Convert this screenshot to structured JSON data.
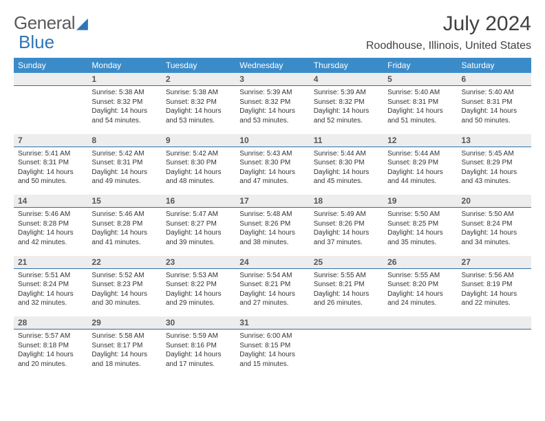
{
  "logo": {
    "part1": "General",
    "part2": "Blue"
  },
  "title": "July 2024",
  "location": "Roodhouse, Illinois, United States",
  "header_bg": "#3b8bc9",
  "daynum_bg": "#ededed",
  "daynum_border": "#2e6ca4",
  "weekdays": [
    "Sunday",
    "Monday",
    "Tuesday",
    "Wednesday",
    "Thursday",
    "Friday",
    "Saturday"
  ],
  "weeks": [
    {
      "nums": [
        "",
        "1",
        "2",
        "3",
        "4",
        "5",
        "6"
      ],
      "cells": [
        {
          "sr": "",
          "ss": "",
          "dl1": "",
          "dl2": ""
        },
        {
          "sr": "Sunrise: 5:38 AM",
          "ss": "Sunset: 8:32 PM",
          "dl1": "Daylight: 14 hours",
          "dl2": "and 54 minutes."
        },
        {
          "sr": "Sunrise: 5:38 AM",
          "ss": "Sunset: 8:32 PM",
          "dl1": "Daylight: 14 hours",
          "dl2": "and 53 minutes."
        },
        {
          "sr": "Sunrise: 5:39 AM",
          "ss": "Sunset: 8:32 PM",
          "dl1": "Daylight: 14 hours",
          "dl2": "and 53 minutes."
        },
        {
          "sr": "Sunrise: 5:39 AM",
          "ss": "Sunset: 8:32 PM",
          "dl1": "Daylight: 14 hours",
          "dl2": "and 52 minutes."
        },
        {
          "sr": "Sunrise: 5:40 AM",
          "ss": "Sunset: 8:31 PM",
          "dl1": "Daylight: 14 hours",
          "dl2": "and 51 minutes."
        },
        {
          "sr": "Sunrise: 5:40 AM",
          "ss": "Sunset: 8:31 PM",
          "dl1": "Daylight: 14 hours",
          "dl2": "and 50 minutes."
        }
      ]
    },
    {
      "nums": [
        "7",
        "8",
        "9",
        "10",
        "11",
        "12",
        "13"
      ],
      "cells": [
        {
          "sr": "Sunrise: 5:41 AM",
          "ss": "Sunset: 8:31 PM",
          "dl1": "Daylight: 14 hours",
          "dl2": "and 50 minutes."
        },
        {
          "sr": "Sunrise: 5:42 AM",
          "ss": "Sunset: 8:31 PM",
          "dl1": "Daylight: 14 hours",
          "dl2": "and 49 minutes."
        },
        {
          "sr": "Sunrise: 5:42 AM",
          "ss": "Sunset: 8:30 PM",
          "dl1": "Daylight: 14 hours",
          "dl2": "and 48 minutes."
        },
        {
          "sr": "Sunrise: 5:43 AM",
          "ss": "Sunset: 8:30 PM",
          "dl1": "Daylight: 14 hours",
          "dl2": "and 47 minutes."
        },
        {
          "sr": "Sunrise: 5:44 AM",
          "ss": "Sunset: 8:30 PM",
          "dl1": "Daylight: 14 hours",
          "dl2": "and 45 minutes."
        },
        {
          "sr": "Sunrise: 5:44 AM",
          "ss": "Sunset: 8:29 PM",
          "dl1": "Daylight: 14 hours",
          "dl2": "and 44 minutes."
        },
        {
          "sr": "Sunrise: 5:45 AM",
          "ss": "Sunset: 8:29 PM",
          "dl1": "Daylight: 14 hours",
          "dl2": "and 43 minutes."
        }
      ]
    },
    {
      "nums": [
        "14",
        "15",
        "16",
        "17",
        "18",
        "19",
        "20"
      ],
      "cells": [
        {
          "sr": "Sunrise: 5:46 AM",
          "ss": "Sunset: 8:28 PM",
          "dl1": "Daylight: 14 hours",
          "dl2": "and 42 minutes."
        },
        {
          "sr": "Sunrise: 5:46 AM",
          "ss": "Sunset: 8:28 PM",
          "dl1": "Daylight: 14 hours",
          "dl2": "and 41 minutes."
        },
        {
          "sr": "Sunrise: 5:47 AM",
          "ss": "Sunset: 8:27 PM",
          "dl1": "Daylight: 14 hours",
          "dl2": "and 39 minutes."
        },
        {
          "sr": "Sunrise: 5:48 AM",
          "ss": "Sunset: 8:26 PM",
          "dl1": "Daylight: 14 hours",
          "dl2": "and 38 minutes."
        },
        {
          "sr": "Sunrise: 5:49 AM",
          "ss": "Sunset: 8:26 PM",
          "dl1": "Daylight: 14 hours",
          "dl2": "and 37 minutes."
        },
        {
          "sr": "Sunrise: 5:50 AM",
          "ss": "Sunset: 8:25 PM",
          "dl1": "Daylight: 14 hours",
          "dl2": "and 35 minutes."
        },
        {
          "sr": "Sunrise: 5:50 AM",
          "ss": "Sunset: 8:24 PM",
          "dl1": "Daylight: 14 hours",
          "dl2": "and 34 minutes."
        }
      ]
    },
    {
      "nums": [
        "21",
        "22",
        "23",
        "24",
        "25",
        "26",
        "27"
      ],
      "cells": [
        {
          "sr": "Sunrise: 5:51 AM",
          "ss": "Sunset: 8:24 PM",
          "dl1": "Daylight: 14 hours",
          "dl2": "and 32 minutes."
        },
        {
          "sr": "Sunrise: 5:52 AM",
          "ss": "Sunset: 8:23 PM",
          "dl1": "Daylight: 14 hours",
          "dl2": "and 30 minutes."
        },
        {
          "sr": "Sunrise: 5:53 AM",
          "ss": "Sunset: 8:22 PM",
          "dl1": "Daylight: 14 hours",
          "dl2": "and 29 minutes."
        },
        {
          "sr": "Sunrise: 5:54 AM",
          "ss": "Sunset: 8:21 PM",
          "dl1": "Daylight: 14 hours",
          "dl2": "and 27 minutes."
        },
        {
          "sr": "Sunrise: 5:55 AM",
          "ss": "Sunset: 8:21 PM",
          "dl1": "Daylight: 14 hours",
          "dl2": "and 26 minutes."
        },
        {
          "sr": "Sunrise: 5:55 AM",
          "ss": "Sunset: 8:20 PM",
          "dl1": "Daylight: 14 hours",
          "dl2": "and 24 minutes."
        },
        {
          "sr": "Sunrise: 5:56 AM",
          "ss": "Sunset: 8:19 PM",
          "dl1": "Daylight: 14 hours",
          "dl2": "and 22 minutes."
        }
      ]
    },
    {
      "nums": [
        "28",
        "29",
        "30",
        "31",
        "",
        "",
        ""
      ],
      "cells": [
        {
          "sr": "Sunrise: 5:57 AM",
          "ss": "Sunset: 8:18 PM",
          "dl1": "Daylight: 14 hours",
          "dl2": "and 20 minutes."
        },
        {
          "sr": "Sunrise: 5:58 AM",
          "ss": "Sunset: 8:17 PM",
          "dl1": "Daylight: 14 hours",
          "dl2": "and 18 minutes."
        },
        {
          "sr": "Sunrise: 5:59 AM",
          "ss": "Sunset: 8:16 PM",
          "dl1": "Daylight: 14 hours",
          "dl2": "and 17 minutes."
        },
        {
          "sr": "Sunrise: 6:00 AM",
          "ss": "Sunset: 8:15 PM",
          "dl1": "Daylight: 14 hours",
          "dl2": "and 15 minutes."
        },
        {
          "sr": "",
          "ss": "",
          "dl1": "",
          "dl2": ""
        },
        {
          "sr": "",
          "ss": "",
          "dl1": "",
          "dl2": ""
        },
        {
          "sr": "",
          "ss": "",
          "dl1": "",
          "dl2": ""
        }
      ]
    }
  ]
}
